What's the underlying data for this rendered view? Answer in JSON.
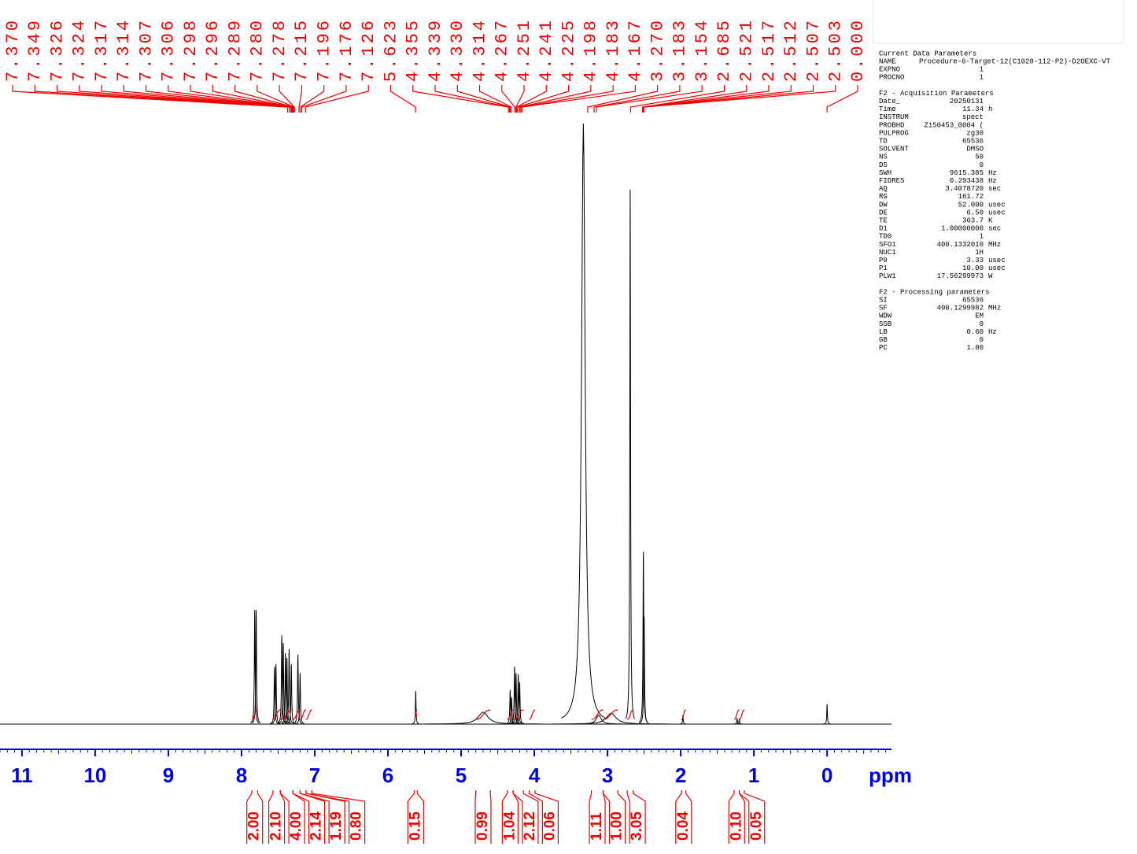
{
  "chart_data": {
    "type": "nmr",
    "x_label": "ppm",
    "xlim": [
      11.3,
      -0.88
    ],
    "xticks": [
      11,
      10,
      9,
      8,
      7,
      6,
      5,
      4,
      3,
      2,
      1,
      0
    ],
    "ylim": [
      0,
      100
    ],
    "line_color": "#000000",
    "axis_color": "#0000dd",
    "annotation_color": "#ee0000",
    "peak_ppm": [
      7.82,
      7.8,
      7.55,
      7.53,
      7.45,
      7.43,
      7.4,
      7.38,
      7.35,
      7.32,
      7.23,
      7.2,
      5.62,
      4.7,
      4.33,
      4.31,
      4.27,
      4.25,
      4.22,
      4.2,
      3.33,
      3.12,
      2.95,
      2.69,
      2.51,
      2.5,
      1.97,
      1.23,
      1.2,
      0.0
    ],
    "peak_heights": [
      19,
      19,
      9.5,
      10,
      14.8,
      13.5,
      11.8,
      11,
      12.5,
      10,
      11.6,
      8.5,
      5.5,
      2,
      5.7,
      4.5,
      9.6,
      8.5,
      8.3,
      7,
      100,
      1.5,
      1.8,
      89,
      28.7,
      18,
      1.5,
      1,
      0.8,
      3.3
    ],
    "peak_widths": [
      0.006,
      0.006,
      0.006,
      0.006,
      0.006,
      0.006,
      0.006,
      0.006,
      0.006,
      0.006,
      0.006,
      0.006,
      0.005,
      0.08,
      0.006,
      0.006,
      0.006,
      0.006,
      0.006,
      0.006,
      0.03,
      0.04,
      0.08,
      0.006,
      0.006,
      0.006,
      0.005,
      0.005,
      0.005,
      0.005
    ],
    "peak_labels": [
      {
        "value": 7.37,
        "label": "7.370"
      },
      {
        "value": 7.349,
        "label": "7.349"
      },
      {
        "value": 7.326,
        "label": "7.326"
      },
      {
        "value": 7.324,
        "label": "7.324"
      },
      {
        "value": 7.317,
        "label": "7.317"
      },
      {
        "value": 7.314,
        "label": "7.314"
      },
      {
        "value": 7.307,
        "label": "7.307"
      },
      {
        "value": 7.306,
        "label": "7.306"
      },
      {
        "value": 7.298,
        "label": "7.298"
      },
      {
        "value": 7.296,
        "label": "7.296"
      },
      {
        "value": 7.289,
        "label": "7.289"
      },
      {
        "value": 7.28,
        "label": "7.280"
      },
      {
        "value": 7.278,
        "label": "7.278"
      },
      {
        "value": 7.215,
        "label": "7.215"
      },
      {
        "value": 7.196,
        "label": "7.196"
      },
      {
        "value": 7.176,
        "label": "7.176"
      },
      {
        "value": 7.126,
        "label": "7.126"
      },
      {
        "value": 5.623,
        "label": "5.623"
      },
      {
        "value": 4.355,
        "label": "4.355"
      },
      {
        "value": 4.339,
        "label": "4.339"
      },
      {
        "value": 4.33,
        "label": "4.330"
      },
      {
        "value": 4.314,
        "label": "4.314"
      },
      {
        "value": 4.267,
        "label": "4.267"
      },
      {
        "value": 4.251,
        "label": "4.251"
      },
      {
        "value": 4.241,
        "label": "4.241"
      },
      {
        "value": 4.225,
        "label": "4.225"
      },
      {
        "value": 4.198,
        "label": "4.198"
      },
      {
        "value": 4.183,
        "label": "4.183"
      },
      {
        "value": 4.167,
        "label": "4.167"
      },
      {
        "value": 3.27,
        "label": "3.270"
      },
      {
        "value": 3.183,
        "label": "3.183"
      },
      {
        "value": 3.154,
        "label": "3.154"
      },
      {
        "value": 2.685,
        "label": "2.685"
      },
      {
        "value": 2.521,
        "label": "2.521"
      },
      {
        "value": 2.517,
        "label": "2.517"
      },
      {
        "value": 2.512,
        "label": "2.512"
      },
      {
        "value": 2.507,
        "label": "2.507"
      },
      {
        "value": 2.503,
        "label": "2.503"
      },
      {
        "value": 0,
        "label": "0.000"
      }
    ],
    "integrals": [
      {
        "range": [
          7.86,
          7.78
        ],
        "value": 2,
        "label": "2.00"
      },
      {
        "range": [
          7.57,
          7.47
        ],
        "value": 2.1,
        "label": "2.10"
      },
      {
        "range": [
          7.47,
          7.3
        ],
        "value": 4,
        "label": "4.00"
      },
      {
        "range": [
          7.3,
          7.2
        ],
        "value": 2.14,
        "label": "2.14"
      },
      {
        "range": [
          7.2,
          7.12
        ],
        "value": 1.19,
        "label": "1.19"
      },
      {
        "range": [
          7.12,
          7.04
        ],
        "value": 0.8,
        "label": "0.80"
      },
      {
        "range": [
          5.64,
          5.6
        ],
        "value": 0.15,
        "label": "0.15"
      },
      {
        "range": [
          4.8,
          4.6
        ],
        "value": 0.99,
        "label": "0.99"
      },
      {
        "range": [
          4.37,
          4.29
        ],
        "value": 1.04,
        "label": "1.04"
      },
      {
        "range": [
          4.29,
          4.15
        ],
        "value": 2.12,
        "label": "2.12"
      },
      {
        "range": [
          4.07,
          3.99
        ],
        "value": 0.06,
        "label": "0.06"
      },
      {
        "range": [
          3.22,
          3.06
        ],
        "value": 1.11,
        "label": "1.11"
      },
      {
        "range": [
          3.06,
          2.86
        ],
        "value": 1,
        "label": "1.00"
      },
      {
        "range": [
          2.73,
          2.65
        ],
        "value": 3.05,
        "label": "3.05"
      },
      {
        "range": [
          1.99,
          1.93
        ],
        "value": 0.04,
        "label": "0.04"
      },
      {
        "range": [
          1.27,
          1.2
        ],
        "value": 0.1,
        "label": "0.10"
      },
      {
        "range": [
          1.2,
          1.13
        ],
        "value": 0.05,
        "label": "0.05"
      }
    ]
  },
  "parameters": [
    {
      "title": "Current Data Parameters",
      "rows": [
        [
          "NAME",
          "Procedure-6-Target-12(C1028-112-P2)-D2OEXC-VT"
        ],
        [
          "EXPNO",
          "1"
        ],
        [
          "PROCNO",
          "1"
        ]
      ]
    },
    {
      "title": "F2 - Acquisition Parameters",
      "rows": [
        [
          "Date_",
          "20250131"
        ],
        [
          "Time",
          "11.34",
          "h"
        ],
        [
          "INSTRUM",
          "spect"
        ],
        [
          "PROBHD",
          "Z150453_0004 ("
        ],
        [
          "PULPROG",
          "zg30"
        ],
        [
          "TD",
          "65536"
        ],
        [
          "SOLVENT",
          "DMSO"
        ],
        [
          "NS",
          "50"
        ],
        [
          "DS",
          "0"
        ],
        [
          "SWH",
          "9615.385",
          "Hz"
        ],
        [
          "FIDRES",
          "0.293438",
          "Hz"
        ],
        [
          "AQ",
          "3.4078720",
          "sec"
        ],
        [
          "RG",
          "161.72"
        ],
        [
          "DW",
          "52.000",
          "usec"
        ],
        [
          "DE",
          "6.50",
          "usec"
        ],
        [
          "TE",
          "363.7",
          "K"
        ],
        [
          "D1",
          "1.00000000",
          "sec"
        ],
        [
          "TD0",
          "1"
        ],
        [
          "SFO1",
          "400.1332010",
          "MHz"
        ],
        [
          "NUC1",
          "1H"
        ],
        [
          "P0",
          "3.33",
          "usec"
        ],
        [
          "P1",
          "10.00",
          "usec"
        ],
        [
          "PLW1",
          "17.56299973",
          "W"
        ]
      ]
    },
    {
      "title": "F2 - Processing parameters",
      "rows": [
        [
          "SI",
          "65536"
        ],
        [
          "SF",
          "400.1299982",
          "MHz"
        ],
        [
          "WDW",
          "EM"
        ],
        [
          "SSB",
          "0"
        ],
        [
          "LB",
          "0.60",
          "Hz"
        ],
        [
          "GB",
          "0"
        ],
        [
          "PC",
          "1.00"
        ]
      ]
    }
  ]
}
